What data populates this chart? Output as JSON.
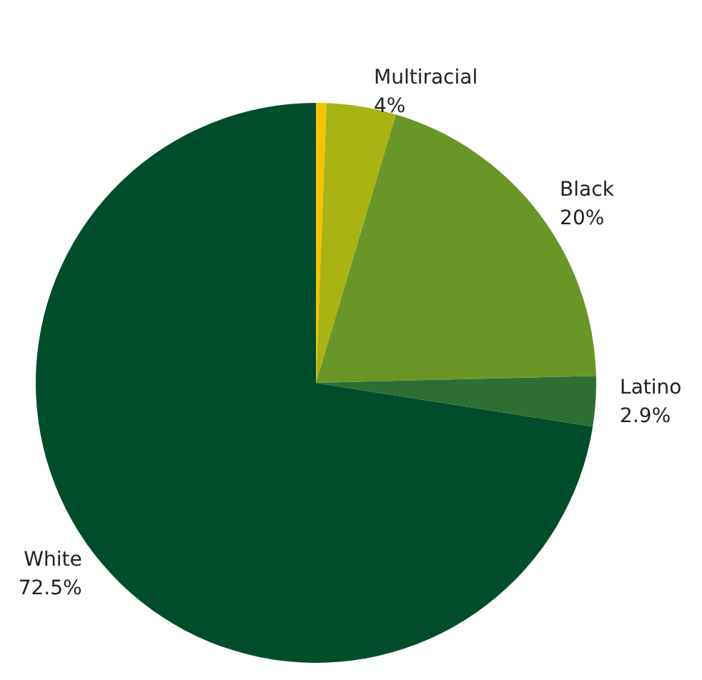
{
  "chart_data": {
    "type": "pie",
    "categories": [
      null,
      "Multiracial",
      "Black",
      "Latino",
      "White"
    ],
    "values": [
      0.6,
      4,
      20,
      2.9,
      72.5
    ],
    "value_labels": [
      null,
      "4%",
      "20%",
      "2.9%",
      "72.5%"
    ],
    "colors": [
      "#f5c400",
      "#a9b414",
      "#6a9628",
      "#2e6e32",
      "#004d2c"
    ],
    "legend": false
  }
}
